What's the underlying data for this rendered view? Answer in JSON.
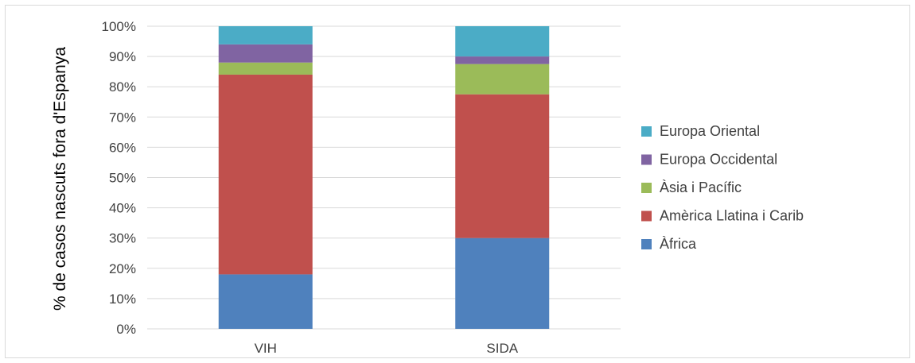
{
  "chart_data": {
    "type": "bar",
    "stacked": true,
    "normalized": true,
    "categories": [
      "VIH",
      "SIDA"
    ],
    "series": [
      {
        "name": "Àfrica",
        "color": "#4f81bd",
        "values": [
          18,
          30
        ]
      },
      {
        "name": "Amèrica Llatina i Carib",
        "color": "#c0504d",
        "values": [
          66,
          47.5
        ]
      },
      {
        "name": "Àsia i Pacífic",
        "color": "#9bbb59",
        "values": [
          4,
          10
        ]
      },
      {
        "name": "Europa Occidental",
        "color": "#8064a2",
        "values": [
          6,
          2.5
        ]
      },
      {
        "name": "Europa Oriental",
        "color": "#4bacc6",
        "values": [
          6,
          10
        ]
      }
    ],
    "ylabel": "% de casos nascuts fora d'Espanya",
    "xlabel": "",
    "ylim": [
      0,
      100
    ],
    "yticks": [
      "0%",
      "10%",
      "20%",
      "30%",
      "40%",
      "50%",
      "60%",
      "70%",
      "80%",
      "90%",
      "100%"
    ],
    "grid": true,
    "legend_position": "right",
    "legend_order": [
      "Europa Oriental",
      "Europa Occidental",
      "Àsia i Pacífic",
      "Amèrica Llatina i Carib",
      "Àfrica"
    ]
  }
}
